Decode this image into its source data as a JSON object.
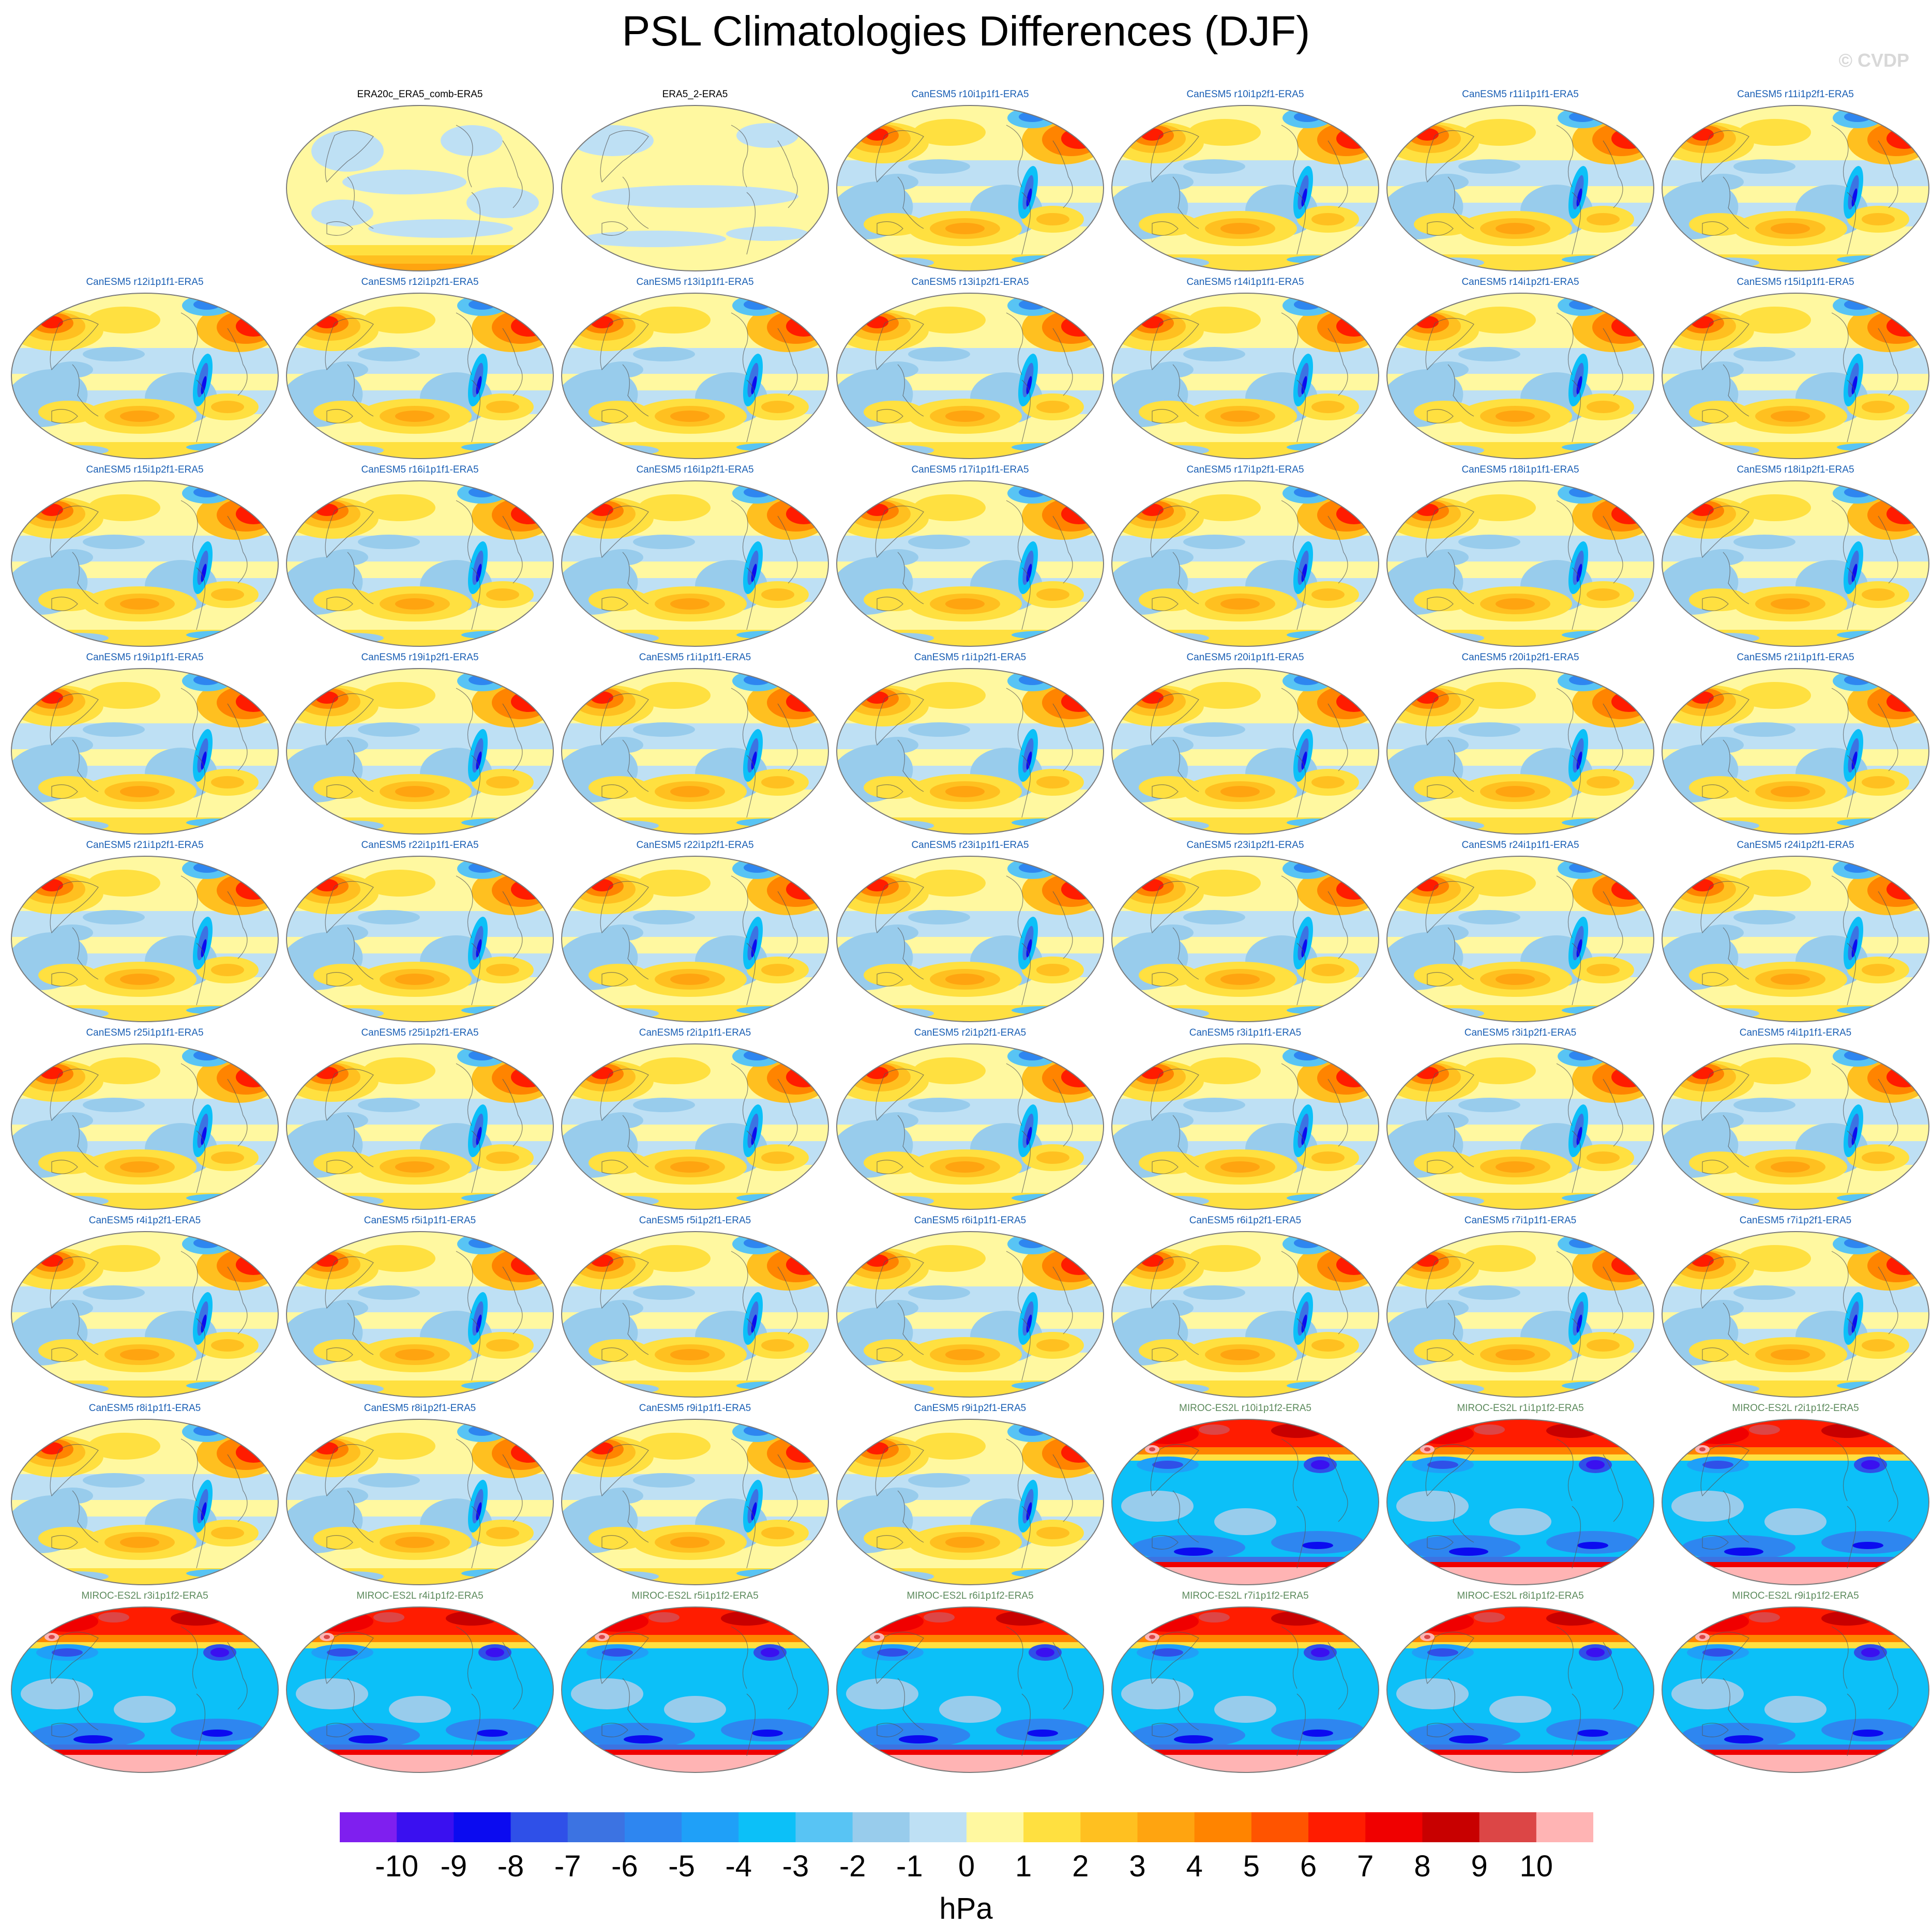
{
  "title": "PSL Climatologies Differences (DJF)",
  "credit": "© CVDP",
  "panels": [
    {
      "row": 0,
      "col": 1,
      "label": "ERA20c_ERA5_comb-ERA5",
      "style": "obs1",
      "color": "#000000"
    },
    {
      "row": 0,
      "col": 2,
      "label": "ERA5_2-ERA5",
      "style": "obs2",
      "color": "#000000"
    },
    {
      "row": 0,
      "col": 3,
      "label": "CanESM5 r10i1p1f1-ERA5",
      "style": "can",
      "color": "#1a5fb4"
    },
    {
      "row": 0,
      "col": 4,
      "label": "CanESM5 r10i1p2f1-ERA5",
      "style": "can",
      "color": "#1a5fb4"
    },
    {
      "row": 0,
      "col": 5,
      "label": "CanESM5 r11i1p1f1-ERA5",
      "style": "can",
      "color": "#1a5fb4"
    },
    {
      "row": 0,
      "col": 6,
      "label": "CanESM5 r11i1p2f1-ERA5",
      "style": "can",
      "color": "#1a5fb4"
    },
    {
      "row": 1,
      "col": 0,
      "label": "CanESM5 r12i1p1f1-ERA5",
      "style": "can",
      "color": "#1a5fb4"
    },
    {
      "row": 1,
      "col": 1,
      "label": "CanESM5 r12i1p2f1-ERA5",
      "style": "can",
      "color": "#1a5fb4"
    },
    {
      "row": 1,
      "col": 2,
      "label": "CanESM5 r13i1p1f1-ERA5",
      "style": "can",
      "color": "#1a5fb4"
    },
    {
      "row": 1,
      "col": 3,
      "label": "CanESM5 r13i1p2f1-ERA5",
      "style": "can",
      "color": "#1a5fb4"
    },
    {
      "row": 1,
      "col": 4,
      "label": "CanESM5 r14i1p1f1-ERA5",
      "style": "can",
      "color": "#1a5fb4"
    },
    {
      "row": 1,
      "col": 5,
      "label": "CanESM5 r14i1p2f1-ERA5",
      "style": "can",
      "color": "#1a5fb4"
    },
    {
      "row": 1,
      "col": 6,
      "label": "CanESM5 r15i1p1f1-ERA5",
      "style": "can",
      "color": "#1a5fb4"
    },
    {
      "row": 2,
      "col": 0,
      "label": "CanESM5 r15i1p2f1-ERA5",
      "style": "can",
      "color": "#1a5fb4"
    },
    {
      "row": 2,
      "col": 1,
      "label": "CanESM5 r16i1p1f1-ERA5",
      "style": "can",
      "color": "#1a5fb4"
    },
    {
      "row": 2,
      "col": 2,
      "label": "CanESM5 r16i1p2f1-ERA5",
      "style": "can",
      "color": "#1a5fb4"
    },
    {
      "row": 2,
      "col": 3,
      "label": "CanESM5 r17i1p1f1-ERA5",
      "style": "can",
      "color": "#1a5fb4"
    },
    {
      "row": 2,
      "col": 4,
      "label": "CanESM5 r17i1p2f1-ERA5",
      "style": "can",
      "color": "#1a5fb4"
    },
    {
      "row": 2,
      "col": 5,
      "label": "CanESM5 r18i1p1f1-ERA5",
      "style": "can",
      "color": "#1a5fb4"
    },
    {
      "row": 2,
      "col": 6,
      "label": "CanESM5 r18i1p2f1-ERA5",
      "style": "can",
      "color": "#1a5fb4"
    },
    {
      "row": 3,
      "col": 0,
      "label": "CanESM5 r19i1p1f1-ERA5",
      "style": "can",
      "color": "#1a5fb4"
    },
    {
      "row": 3,
      "col": 1,
      "label": "CanESM5 r19i1p2f1-ERA5",
      "style": "can",
      "color": "#1a5fb4"
    },
    {
      "row": 3,
      "col": 2,
      "label": "CanESM5 r1i1p1f1-ERA5",
      "style": "can",
      "color": "#1a5fb4"
    },
    {
      "row": 3,
      "col": 3,
      "label": "CanESM5 r1i1p2f1-ERA5",
      "style": "can",
      "color": "#1a5fb4"
    },
    {
      "row": 3,
      "col": 4,
      "label": "CanESM5 r20i1p1f1-ERA5",
      "style": "can",
      "color": "#1a5fb4"
    },
    {
      "row": 3,
      "col": 5,
      "label": "CanESM5 r20i1p2f1-ERA5",
      "style": "can",
      "color": "#1a5fb4"
    },
    {
      "row": 3,
      "col": 6,
      "label": "CanESM5 r21i1p1f1-ERA5",
      "style": "can",
      "color": "#1a5fb4"
    },
    {
      "row": 4,
      "col": 0,
      "label": "CanESM5 r21i1p2f1-ERA5",
      "style": "can",
      "color": "#1a5fb4"
    },
    {
      "row": 4,
      "col": 1,
      "label": "CanESM5 r22i1p1f1-ERA5",
      "style": "can",
      "color": "#1a5fb4"
    },
    {
      "row": 4,
      "col": 2,
      "label": "CanESM5 r22i1p2f1-ERA5",
      "style": "can",
      "color": "#1a5fb4"
    },
    {
      "row": 4,
      "col": 3,
      "label": "CanESM5 r23i1p1f1-ERA5",
      "style": "can",
      "color": "#1a5fb4"
    },
    {
      "row": 4,
      "col": 4,
      "label": "CanESM5 r23i1p2f1-ERA5",
      "style": "can",
      "color": "#1a5fb4"
    },
    {
      "row": 4,
      "col": 5,
      "label": "CanESM5 r24i1p1f1-ERA5",
      "style": "can",
      "color": "#1a5fb4"
    },
    {
      "row": 4,
      "col": 6,
      "label": "CanESM5 r24i1p2f1-ERA5",
      "style": "can",
      "color": "#1a5fb4"
    },
    {
      "row": 5,
      "col": 0,
      "label": "CanESM5 r25i1p1f1-ERA5",
      "style": "can",
      "color": "#1a5fb4"
    },
    {
      "row": 5,
      "col": 1,
      "label": "CanESM5 r25i1p2f1-ERA5",
      "style": "can",
      "color": "#1a5fb4"
    },
    {
      "row": 5,
      "col": 2,
      "label": "CanESM5 r2i1p1f1-ERA5",
      "style": "can",
      "color": "#1a5fb4"
    },
    {
      "row": 5,
      "col": 3,
      "label": "CanESM5 r2i1p2f1-ERA5",
      "style": "can",
      "color": "#1a5fb4"
    },
    {
      "row": 5,
      "col": 4,
      "label": "CanESM5 r3i1p1f1-ERA5",
      "style": "can",
      "color": "#1a5fb4"
    },
    {
      "row": 5,
      "col": 5,
      "label": "CanESM5 r3i1p2f1-ERA5",
      "style": "can",
      "color": "#1a5fb4"
    },
    {
      "row": 5,
      "col": 6,
      "label": "CanESM5 r4i1p1f1-ERA5",
      "style": "can",
      "color": "#1a5fb4"
    },
    {
      "row": 6,
      "col": 0,
      "label": "CanESM5 r4i1p2f1-ERA5",
      "style": "can",
      "color": "#1a5fb4"
    },
    {
      "row": 6,
      "col": 1,
      "label": "CanESM5 r5i1p1f1-ERA5",
      "style": "can",
      "color": "#1a5fb4"
    },
    {
      "row": 6,
      "col": 2,
      "label": "CanESM5 r5i1p2f1-ERA5",
      "style": "can",
      "color": "#1a5fb4"
    },
    {
      "row": 6,
      "col": 3,
      "label": "CanESM5 r6i1p1f1-ERA5",
      "style": "can",
      "color": "#1a5fb4"
    },
    {
      "row": 6,
      "col": 4,
      "label": "CanESM5 r6i1p2f1-ERA5",
      "style": "can",
      "color": "#1a5fb4"
    },
    {
      "row": 6,
      "col": 5,
      "label": "CanESM5 r7i1p1f1-ERA5",
      "style": "can",
      "color": "#1a5fb4"
    },
    {
      "row": 6,
      "col": 6,
      "label": "CanESM5 r7i1p2f1-ERA5",
      "style": "can",
      "color": "#1a5fb4"
    },
    {
      "row": 7,
      "col": 0,
      "label": "CanESM5 r8i1p1f1-ERA5",
      "style": "can",
      "color": "#1a5fb4"
    },
    {
      "row": 7,
      "col": 1,
      "label": "CanESM5 r8i1p2f1-ERA5",
      "style": "can",
      "color": "#1a5fb4"
    },
    {
      "row": 7,
      "col": 2,
      "label": "CanESM5 r9i1p1f1-ERA5",
      "style": "can",
      "color": "#1a5fb4"
    },
    {
      "row": 7,
      "col": 3,
      "label": "CanESM5 r9i1p2f1-ERA5",
      "style": "can",
      "color": "#1a5fb4"
    },
    {
      "row": 7,
      "col": 4,
      "label": "MIROC-ES2L r10i1p1f2-ERA5",
      "style": "miroc",
      "color": "#5c8a5c"
    },
    {
      "row": 7,
      "col": 5,
      "label": "MIROC-ES2L r1i1p1f2-ERA5",
      "style": "miroc",
      "color": "#5c8a5c"
    },
    {
      "row": 7,
      "col": 6,
      "label": "MIROC-ES2L r2i1p1f2-ERA5",
      "style": "miroc",
      "color": "#5c8a5c"
    },
    {
      "row": 8,
      "col": 0,
      "label": "MIROC-ES2L r3i1p1f2-ERA5",
      "style": "miroc",
      "color": "#5c8a5c"
    },
    {
      "row": 8,
      "col": 1,
      "label": "MIROC-ES2L r4i1p1f2-ERA5",
      "style": "miroc",
      "color": "#5c8a5c"
    },
    {
      "row": 8,
      "col": 2,
      "label": "MIROC-ES2L r5i1p1f2-ERA5",
      "style": "miroc",
      "color": "#5c8a5c"
    },
    {
      "row": 8,
      "col": 3,
      "label": "MIROC-ES2L r6i1p1f2-ERA5",
      "style": "miroc",
      "color": "#5c8a5c"
    },
    {
      "row": 8,
      "col": 4,
      "label": "MIROC-ES2L r7i1p1f2-ERA5",
      "style": "miroc",
      "color": "#5c8a5c"
    },
    {
      "row": 8,
      "col": 5,
      "label": "MIROC-ES2L r8i1p1f2-ERA5",
      "style": "miroc",
      "color": "#5c8a5c"
    },
    {
      "row": 8,
      "col": 6,
      "label": "MIROC-ES2L r9i1p1f2-ERA5",
      "style": "miroc",
      "color": "#5c8a5c"
    }
  ],
  "colorbar": {
    "colors": [
      "#7f1fef",
      "#3a10f0",
      "#0b0bf0",
      "#2f50e8",
      "#3c73e2",
      "#2e86f0",
      "#1fa0f8",
      "#0cc0f8",
      "#58c4f4",
      "#98ccec",
      "#bee0f4",
      "#fff8a0",
      "#ffe040",
      "#ffc020",
      "#ffa410",
      "#ff8400",
      "#ff5400",
      "#ff1c00",
      "#f00000",
      "#c80000",
      "#dc4646",
      "#ffb4b4"
    ],
    "ticks": [
      "-10",
      "-9",
      "-8",
      "-7",
      "-6",
      "-5",
      "-4",
      "-3",
      "-2",
      "-1",
      "0",
      "1",
      "2",
      "3",
      "4",
      "5",
      "6",
      "7",
      "8",
      "9",
      "10"
    ],
    "units": "hPa"
  }
}
